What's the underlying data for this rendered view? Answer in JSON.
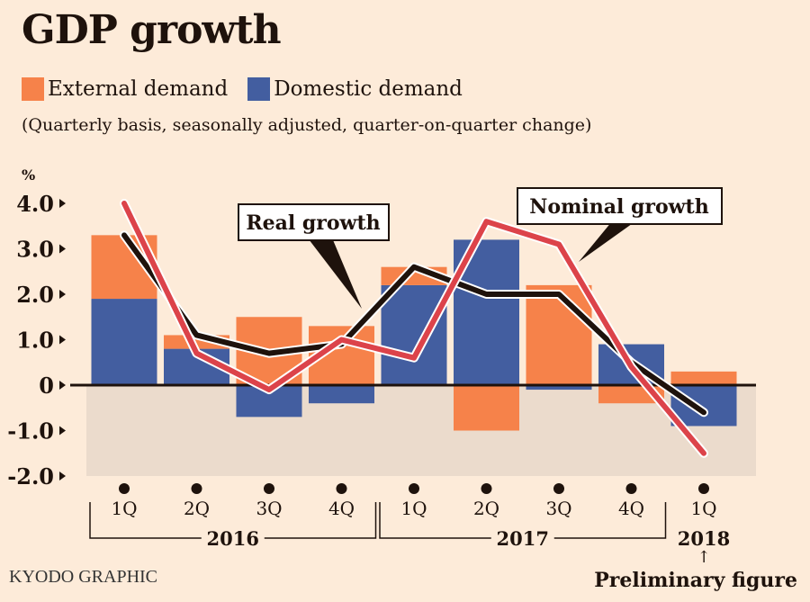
{
  "header": {
    "title": "GDP growth",
    "subtitle": "(Quarterly basis, seasonally adjusted, quarter-on-quarter change)",
    "credit": "KYODO GRAPHIC"
  },
  "colors": {
    "external": "#f6824a",
    "domestic": "#435ea0",
    "real": "#1e120c",
    "nominal": "#dc434a",
    "negative_band": "#ebdbcc",
    "background": "#fdebd9"
  },
  "chart_data": {
    "type": "bar",
    "title": "GDP growth",
    "subtitle": "(Quarterly basis, seasonally adjusted, quarter-on-quarter change)",
    "ylabel": "%",
    "ylim": [
      -2.0,
      4.0
    ],
    "yticks": [
      "4.0",
      "3.0",
      "2.0",
      "1.0",
      "0",
      "-1.0",
      "-2.0"
    ],
    "ytick_values": [
      4,
      3,
      2,
      1,
      0,
      -1,
      -2
    ],
    "categories": [
      "1Q",
      "2Q",
      "3Q",
      "4Q",
      "1Q",
      "2Q",
      "3Q",
      "4Q",
      "1Q"
    ],
    "year_groups": [
      {
        "label": "2016",
        "from": 0,
        "to": 3
      },
      {
        "label": "2017",
        "from": 4,
        "to": 7
      },
      {
        "label": "2018",
        "from": 8,
        "to": 8
      }
    ],
    "legend": [
      "External demand",
      "Domestic demand"
    ],
    "series": [
      {
        "name": "Domestic demand",
        "kind": "bar",
        "values": [
          1.9,
          0.8,
          -0.7,
          -0.4,
          2.2,
          3.2,
          -0.1,
          0.9,
          -0.9
        ]
      },
      {
        "name": "External demand",
        "kind": "bar",
        "values": [
          1.4,
          0.3,
          1.5,
          1.3,
          0.4,
          -1.0,
          2.2,
          -0.4,
          0.3
        ]
      },
      {
        "name": "Real growth",
        "kind": "line",
        "values": [
          3.3,
          1.1,
          0.7,
          0.9,
          2.6,
          2.0,
          2.0,
          0.5,
          -0.6
        ]
      },
      {
        "name": "Nominal growth",
        "kind": "line",
        "values": [
          4.0,
          0.7,
          -0.1,
          1.0,
          0.6,
          3.6,
          3.1,
          0.4,
          -1.5
        ]
      }
    ],
    "annotations": {
      "real": "Real growth",
      "nominal": "Nominal growth",
      "preliminary": "Preliminary figure",
      "preliminary_arrow": "↑"
    }
  }
}
